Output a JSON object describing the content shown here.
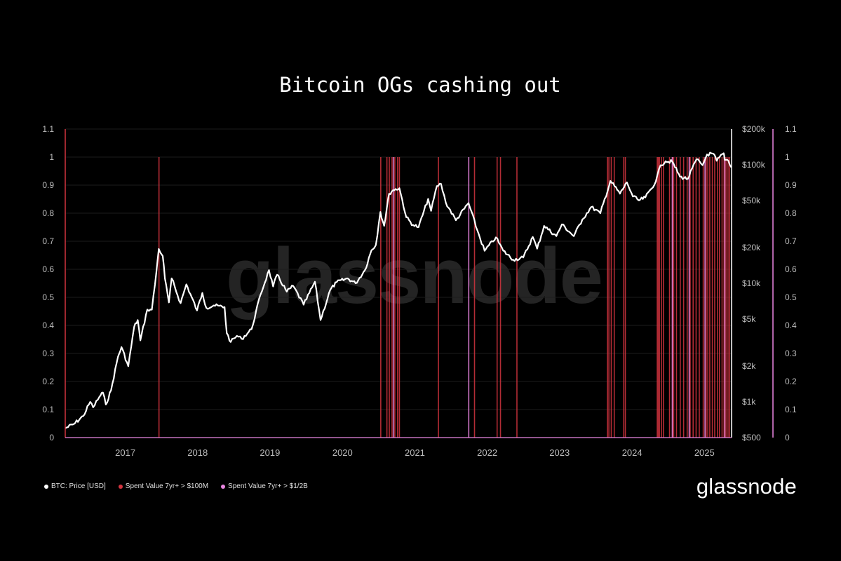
{
  "chart_data": {
    "type": "line",
    "title": "Bitcoin OGs cashing out",
    "x_ticks": [
      "2017",
      "2018",
      "2019",
      "2020",
      "2021",
      "2022",
      "2023",
      "2024",
      "2025"
    ],
    "y_left_ticks": [
      "0",
      "0.1",
      "0.2",
      "0.3",
      "0.4",
      "0.5",
      "0.6",
      "0.7",
      "0.8",
      "0.9",
      "1",
      "1.1"
    ],
    "y_right_price_ticks": [
      "$500",
      "$1k",
      "$2k",
      "$5k",
      "$10k",
      "$20k",
      "$50k",
      "$100k",
      "$200k"
    ],
    "y_right_alt_ticks": [
      "0",
      "0.1",
      "0.2",
      "0.3",
      "0.4",
      "0.5",
      "0.6",
      "0.7",
      "0.8",
      "0.9",
      "1",
      "1.1"
    ],
    "y_left_range": [
      0,
      1.1
    ],
    "y_right_range": [
      500,
      200000
    ],
    "y_right_scale": "log",
    "legend_position": "bottom-left",
    "series": [
      {
        "name": "BTC: Price [USD]",
        "color": "#ffffff",
        "points": [
          [
            "2016-09-01",
            600
          ],
          [
            "2016-10-15",
            650
          ],
          [
            "2016-12-01",
            760
          ],
          [
            "2017-01-05",
            1000
          ],
          [
            "2017-01-20",
            900
          ],
          [
            "2017-02-20",
            1100
          ],
          [
            "2017-03-10",
            1200
          ],
          [
            "2017-03-25",
            950
          ],
          [
            "2017-04-20",
            1250
          ],
          [
            "2017-05-25",
            2400
          ],
          [
            "2017-06-12",
            2900
          ],
          [
            "2017-07-16",
            2000
          ],
          [
            "2017-08-15",
            4300
          ],
          [
            "2017-09-02",
            4900
          ],
          [
            "2017-09-15",
            3300
          ],
          [
            "2017-10-20",
            6000
          ],
          [
            "2017-11-12",
            6000
          ],
          [
            "2017-11-28",
            9800
          ],
          [
            "2017-12-17",
            19500
          ],
          [
            "2018-01-06",
            17000
          ],
          [
            "2018-01-17",
            11000
          ],
          [
            "2018-02-06",
            6900
          ],
          [
            "2018-02-20",
            11000
          ],
          [
            "2018-04-06",
            6800
          ],
          [
            "2018-05-05",
            9800
          ],
          [
            "2018-06-28",
            5900
          ],
          [
            "2018-07-25",
            8300
          ],
          [
            "2018-08-14",
            6200
          ],
          [
            "2018-09-20",
            6500
          ],
          [
            "2018-11-14",
            6300
          ],
          [
            "2018-11-25",
            3800
          ],
          [
            "2018-12-15",
            3200
          ],
          [
            "2019-01-15",
            3600
          ],
          [
            "2019-02-08",
            3400
          ],
          [
            "2019-03-30",
            4100
          ],
          [
            "2019-05-14",
            8000
          ],
          [
            "2019-06-26",
            12900
          ],
          [
            "2019-07-17",
            9400
          ],
          [
            "2019-08-06",
            11800
          ],
          [
            "2019-09-24",
            8500
          ],
          [
            "2019-10-26",
            9500
          ],
          [
            "2019-12-18",
            6600
          ],
          [
            "2020-02-13",
            10300
          ],
          [
            "2020-03-12",
            4900
          ],
          [
            "2020-04-30",
            8800
          ],
          [
            "2020-06-01",
            10200
          ],
          [
            "2020-07-27",
            11000
          ],
          [
            "2020-09-05",
            10000
          ],
          [
            "2020-10-22",
            12900
          ],
          [
            "2020-11-24",
            19000
          ],
          [
            "2020-12-16",
            21000
          ],
          [
            "2021-01-08",
            40000
          ],
          [
            "2021-01-27",
            30500
          ],
          [
            "2021-02-21",
            57000
          ],
          [
            "2021-03-13",
            61000
          ],
          [
            "2021-04-14",
            63500
          ],
          [
            "2021-05-19",
            36000
          ],
          [
            "2021-06-22",
            31000
          ],
          [
            "2021-07-20",
            29800
          ],
          [
            "2021-09-06",
            51500
          ],
          [
            "2021-09-21",
            40800
          ],
          [
            "2021-10-20",
            66000
          ],
          [
            "2021-11-10",
            69000
          ],
          [
            "2021-12-04",
            48000
          ],
          [
            "2022-01-24",
            34000
          ],
          [
            "2022-03-29",
            47500
          ],
          [
            "2022-05-12",
            28000
          ],
          [
            "2022-06-18",
            18800
          ],
          [
            "2022-08-14",
            24400
          ],
          [
            "2022-09-20",
            18800
          ],
          [
            "2022-11-09",
            15800
          ],
          [
            "2022-12-30",
            16500
          ],
          [
            "2023-02-16",
            24600
          ],
          [
            "2023-03-10",
            19600
          ],
          [
            "2023-04-14",
            30500
          ],
          [
            "2023-06-15",
            25000
          ],
          [
            "2023-07-13",
            31400
          ],
          [
            "2023-09-11",
            25000
          ],
          [
            "2023-10-24",
            34500
          ],
          [
            "2023-12-08",
            44000
          ],
          [
            "2024-01-23",
            39000
          ],
          [
            "2024-03-14",
            73000
          ],
          [
            "2024-05-01",
            57000
          ],
          [
            "2024-06-05",
            71000
          ],
          [
            "2024-07-05",
            54000
          ],
          [
            "2024-08-05",
            50000
          ],
          [
            "2024-09-06",
            53000
          ],
          [
            "2024-10-29",
            72500
          ],
          [
            "2024-11-22",
            99000
          ],
          [
            "2024-12-17",
            107000
          ],
          [
            "2025-01-20",
            106000
          ],
          [
            "2025-02-28",
            79000
          ],
          [
            "2025-04-08",
            76000
          ],
          [
            "2025-05-22",
            111000
          ],
          [
            "2025-06-22",
            99000
          ],
          [
            "2025-07-14",
            122000
          ],
          [
            "2025-08-14",
            124000
          ],
          [
            "2025-09-01",
            108000
          ],
          [
            "2025-10-06",
            125000
          ],
          [
            "2025-10-11",
            110000
          ],
          [
            "2025-10-30",
            108000
          ],
          [
            "2025-11-14",
            95000
          ]
        ]
      },
      {
        "name": "Spent Value 7yr+ > $100M",
        "color": "#d3343f",
        "event_dates": [
          "2017-12-18",
          "2021-01-10",
          "2021-02-10",
          "2021-02-22",
          "2021-03-08",
          "2021-03-22",
          "2021-04-05",
          "2021-04-14",
          "2021-10-28",
          "2022-04-28",
          "2022-08-20",
          "2022-09-06",
          "2022-11-28",
          "2024-02-28",
          "2024-03-06",
          "2024-03-18",
          "2024-04-02",
          "2024-05-20",
          "2024-05-28",
          "2024-11-05",
          "2024-11-10",
          "2024-11-16",
          "2024-11-26",
          "2024-12-06",
          "2025-01-06",
          "2025-01-20",
          "2025-01-27",
          "2025-02-10",
          "2025-03-01",
          "2025-03-18",
          "2025-04-05",
          "2025-04-20",
          "2025-05-05",
          "2025-05-20",
          "2025-06-05",
          "2025-06-25",
          "2025-07-10",
          "2025-07-18",
          "2025-07-28",
          "2025-08-10",
          "2025-08-22",
          "2025-09-05",
          "2025-09-15",
          "2025-09-28",
          "2025-10-08",
          "2025-10-18",
          "2025-10-28",
          "2025-11-05"
        ]
      },
      {
        "name": "Spent Value 7yr+ > $1/2B",
        "color": "#ea86e1",
        "event_dates": [
          "2021-03-15",
          "2022-03-30",
          "2025-01-20",
          "2025-04-15",
          "2025-07-04",
          "2025-10-12"
        ]
      }
    ]
  },
  "watermark": "glassnode",
  "logo": "glassnode"
}
